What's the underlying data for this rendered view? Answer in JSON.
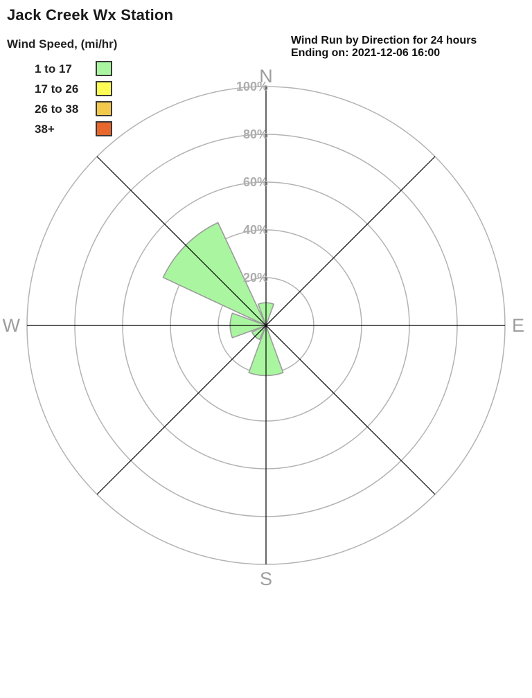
{
  "title": "Jack Creek Wx Station",
  "info": {
    "line1": "Wind Run by Direction for 24 hours",
    "line2": "Ending on: 2021-12-06 16:00"
  },
  "legend": {
    "title": "Wind Speed, (mi/hr)",
    "items": [
      {
        "label": "1 to 17",
        "color": "#aaf6a0"
      },
      {
        "label": "17 to 26",
        "color": "#fdfd55"
      },
      {
        "label": "26 to 38",
        "color": "#f3c94c"
      },
      {
        "label": "38+",
        "color": "#e8672d"
      }
    ]
  },
  "chart_data": {
    "type": "windrose",
    "title": "Wind Run by Direction for 24 hours",
    "subtitle": "Ending on: 2021-12-06 16:00",
    "units": "percent of wind run",
    "directions": [
      "N",
      "NE",
      "E",
      "SE",
      "S",
      "SW",
      "W",
      "NW"
    ],
    "series": [
      {
        "name": "1 to 17",
        "color": "#aaf6a0",
        "values": [
          9.5,
          0,
          0,
          0,
          21,
          6.5,
          15,
          47.5
        ]
      },
      {
        "name": "17 to 26",
        "color": "#fdfd55",
        "values": [
          0,
          0,
          0,
          0,
          0,
          0,
          0,
          0
        ]
      },
      {
        "name": "26 to 38",
        "color": "#f3c94c",
        "values": [
          0,
          0,
          0,
          0,
          0,
          0,
          0,
          0
        ]
      },
      {
        "name": "38+",
        "color": "#e8672d",
        "values": [
          0,
          0,
          0,
          0,
          0,
          0,
          0,
          0
        ]
      }
    ],
    "ring_ticks_pct": [
      20,
      40,
      60,
      80,
      100
    ],
    "ring_tick_labels": [
      "20%",
      "40%",
      "60%",
      "80%",
      "100%"
    ],
    "rmax_pct": 100,
    "sector_width_deg": 40,
    "compass_labels": {
      "n": "N",
      "e": "E",
      "s": "S",
      "w": "W"
    },
    "style": {
      "ring_color": "#b3b3b3",
      "spoke_color": "#000000",
      "wedge_stroke": "#9c9c9c",
      "compass_label_color": "#9d9d9d",
      "tick_label_color": "#aeaeae"
    }
  }
}
